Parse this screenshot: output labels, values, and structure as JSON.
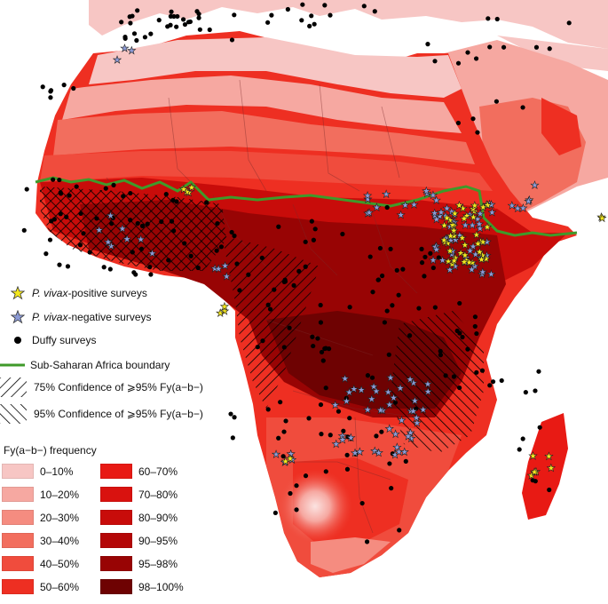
{
  "legend": {
    "pv_positive": {
      "italic": "P. vivax",
      "rest": "-positive surveys",
      "color": "#f4e81e"
    },
    "pv_negative": {
      "italic": "P. vivax",
      "rest": "-negative surveys",
      "color": "#8c9bd6"
    },
    "duffy": "Duffy surveys",
    "boundary": "Sub-Saharan Africa boundary",
    "conf75": "75% Confidence of ⩾95% Fy(a−b−)",
    "conf95": "95% Confidence of ⩾95% Fy(a−b−)",
    "boundary_color": "#3f9a2a"
  },
  "frequency": {
    "title": "Fy(a−b−) frequency",
    "classes": [
      {
        "label": "0–10%",
        "color": "#f7c6c4"
      },
      {
        "label": "10–20%",
        "color": "#f6a8a1"
      },
      {
        "label": "20–30%",
        "color": "#f58c80"
      },
      {
        "label": "30–40%",
        "color": "#f26e5e"
      },
      {
        "label": "40–50%",
        "color": "#f04c3d"
      },
      {
        "label": "50–60%",
        "color": "#ee2f22"
      },
      {
        "label": "60–70%",
        "color": "#e81a14"
      },
      {
        "label": "70–80%",
        "color": "#d9120f"
      },
      {
        "label": "80–90%",
        "color": "#c80c0a"
      },
      {
        "label": "90–95%",
        "color": "#b40707"
      },
      {
        "label": "95–98%",
        "color": "#980404"
      },
      {
        "label": "98–100%",
        "color": "#6e0202"
      }
    ]
  }
}
